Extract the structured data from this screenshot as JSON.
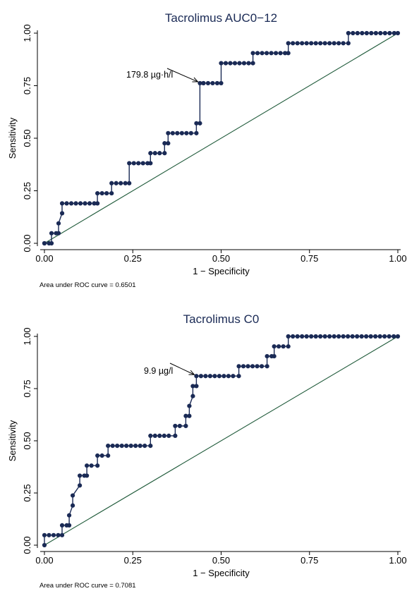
{
  "chart_data": [
    {
      "type": "line",
      "title": "Tacrolimus AUC0−12",
      "xlabel": "1 − Specificity",
      "ylabel": "Sensitivity",
      "xlim": [
        0,
        1
      ],
      "ylim": [
        0,
        1
      ],
      "x_ticks": [
        "0.00",
        "0.25",
        "0.50",
        "0.75",
        "1.00"
      ],
      "y_ticks": [
        "0.00",
        "0.25",
        "0.50",
        "0.75",
        "1.00"
      ],
      "grid": false,
      "colors": {
        "roc": "#1a2a55",
        "reference": "#1f5a3a"
      },
      "annotation": {
        "text": "179.8 µg·h/l",
        "x": 0.44,
        "y": 0.762
      },
      "note": "Area under ROC curve = 0.6501",
      "series": [
        {
          "x": [
            0.0,
            0.0,
            0.02,
            0.02,
            0.04,
            0.04,
            0.05,
            0.05,
            0.15,
            0.15,
            0.19,
            0.19,
            0.24,
            0.24,
            0.3,
            0.3,
            0.34,
            0.34,
            0.35,
            0.35,
            0.43,
            0.43,
            0.44,
            0.44,
            0.45,
            0.45,
            0.5,
            0.5,
            0.59,
            0.59,
            0.69,
            0.69,
            0.86,
            0.86,
            1.0
          ],
          "y": [
            0.0,
            0.0,
            0.0,
            0.048,
            0.048,
            0.095,
            0.143,
            0.19,
            0.19,
            0.238,
            0.238,
            0.286,
            0.286,
            0.381,
            0.381,
            0.429,
            0.429,
            0.476,
            0.476,
            0.524,
            0.524,
            0.571,
            0.571,
            0.762,
            0.762,
            0.762,
            0.762,
            0.857,
            0.857,
            0.905,
            0.905,
            0.952,
            0.952,
            1.0,
            1.0
          ]
        },
        {
          "name": "reference",
          "x": [
            0,
            1
          ],
          "y": [
            0,
            1
          ]
        }
      ]
    },
    {
      "type": "line",
      "title": "Tacrolimus C0",
      "xlabel": "1 − Specificity",
      "ylabel": "Sensitivity",
      "xlim": [
        0,
        1
      ],
      "ylim": [
        0,
        1
      ],
      "x_ticks": [
        "0.00",
        "0.25",
        "0.50",
        "0.75",
        "1.00"
      ],
      "y_ticks": [
        "0.00",
        "0.25",
        "0.50",
        "0.75",
        "1.00"
      ],
      "grid": false,
      "colors": {
        "roc": "#1a2a55",
        "reference": "#1f5a3a"
      },
      "annotation": {
        "text": "9.9 µg/l",
        "x": 0.43,
        "y": 0.81
      },
      "note": "Area under ROC curve = 0.7081",
      "series": [
        {
          "x": [
            0.0,
            0.0,
            0.05,
            0.05,
            0.07,
            0.07,
            0.08,
            0.08,
            0.1,
            0.1,
            0.12,
            0.12,
            0.15,
            0.15,
            0.18,
            0.18,
            0.3,
            0.3,
            0.37,
            0.37,
            0.4,
            0.4,
            0.41,
            0.41,
            0.42,
            0.42,
            0.43,
            0.43,
            0.55,
            0.55,
            0.63,
            0.63,
            0.65,
            0.65,
            0.69,
            0.69,
            1.0
          ],
          "y": [
            0.0,
            0.048,
            0.048,
            0.095,
            0.095,
            0.143,
            0.19,
            0.238,
            0.286,
            0.333,
            0.333,
            0.381,
            0.381,
            0.429,
            0.429,
            0.476,
            0.476,
            0.524,
            0.524,
            0.571,
            0.571,
            0.619,
            0.619,
            0.667,
            0.714,
            0.762,
            0.762,
            0.81,
            0.81,
            0.857,
            0.857,
            0.905,
            0.905,
            0.952,
            0.952,
            1.0,
            1.0
          ]
        },
        {
          "name": "reference",
          "x": [
            0,
            1
          ],
          "y": [
            0,
            1
          ]
        }
      ]
    }
  ]
}
